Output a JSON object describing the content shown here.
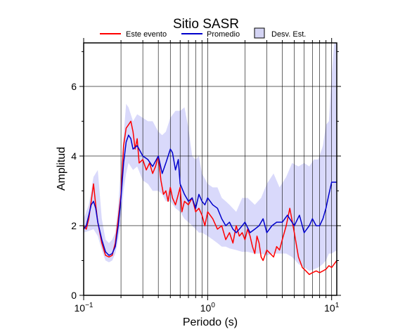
{
  "chart_data": {
    "type": "line",
    "title": "Sitio SASR",
    "xlabel": "Periodo (s)",
    "ylabel": "Amplitud",
    "x_scale": "log",
    "xlim": [
      0.1,
      11
    ],
    "ylim": [
      0,
      7.25
    ],
    "y_ticks": [
      0,
      2,
      4,
      6
    ],
    "x_tick_labels": [
      {
        "base": "10",
        "exp": "−1",
        "value": 0.1
      },
      {
        "base": "10",
        "exp": "0",
        "value": 1
      },
      {
        "base": "10",
        "exp": "1",
        "value": 10
      }
    ],
    "grid": true,
    "legend_placement": "top",
    "legend": {
      "event_label": "Este evento",
      "mean_label": "Promedio",
      "band_label": "Desv. Est."
    },
    "colors": {
      "event": "#ff0000",
      "mean": "#0000cc",
      "band_fill": "#d9d9fb",
      "band_legend_fill": "#d4d4f4"
    },
    "series": [
      {
        "name": "Este evento",
        "color": "#ff0000",
        "x": [
          0.1,
          0.105,
          0.11,
          0.115,
          0.12,
          0.125,
          0.13,
          0.14,
          0.15,
          0.16,
          0.17,
          0.18,
          0.19,
          0.2,
          0.21,
          0.22,
          0.23,
          0.24,
          0.25,
          0.26,
          0.27,
          0.28,
          0.3,
          0.32,
          0.34,
          0.36,
          0.38,
          0.4,
          0.42,
          0.44,
          0.46,
          0.48,
          0.5,
          0.52,
          0.55,
          0.58,
          0.6,
          0.62,
          0.65,
          0.7,
          0.75,
          0.8,
          0.85,
          0.9,
          0.95,
          1.0,
          1.1,
          1.2,
          1.3,
          1.4,
          1.5,
          1.6,
          1.7,
          1.8,
          1.9,
          2.0,
          2.1,
          2.2,
          2.3,
          2.4,
          2.5,
          2.6,
          2.7,
          2.8,
          3.0,
          3.2,
          3.4,
          3.6,
          3.8,
          4.0,
          4.3,
          4.6,
          5.0,
          5.4,
          5.8,
          6.2,
          6.6,
          7.0,
          7.5,
          8.0,
          8.5,
          9.0,
          9.5,
          10.0,
          10.5,
          11.0
        ],
        "y": [
          2.0,
          1.9,
          2.2,
          2.7,
          3.2,
          2.6,
          2.1,
          1.5,
          1.15,
          1.1,
          1.15,
          1.5,
          2.2,
          2.9,
          4.3,
          4.8,
          4.9,
          5.0,
          4.7,
          4.2,
          4.5,
          3.8,
          3.9,
          3.6,
          3.8,
          3.5,
          3.7,
          4.0,
          3.3,
          2.9,
          3.0,
          2.7,
          3.1,
          2.8,
          2.6,
          2.9,
          3.1,
          2.4,
          2.7,
          2.6,
          2.8,
          2.4,
          2.5,
          2.3,
          2.0,
          2.4,
          2.2,
          1.9,
          2.0,
          1.6,
          1.8,
          1.5,
          2.0,
          1.7,
          1.8,
          1.6,
          1.9,
          1.7,
          1.4,
          1.2,
          1.7,
          1.5,
          1.1,
          1.0,
          1.3,
          1.2,
          1.1,
          1.4,
          1.3,
          1.6,
          2.0,
          2.5,
          1.8,
          1.1,
          0.8,
          0.7,
          0.6,
          0.65,
          0.7,
          0.65,
          0.7,
          0.75,
          0.85,
          0.8,
          0.9,
          1.0
        ]
      },
      {
        "name": "Promedio",
        "color": "#0000cc",
        "x": [
          0.1,
          0.105,
          0.11,
          0.115,
          0.12,
          0.125,
          0.13,
          0.14,
          0.15,
          0.16,
          0.17,
          0.18,
          0.19,
          0.2,
          0.21,
          0.22,
          0.23,
          0.24,
          0.25,
          0.27,
          0.3,
          0.33,
          0.36,
          0.4,
          0.43,
          0.46,
          0.5,
          0.52,
          0.55,
          0.58,
          0.6,
          0.65,
          0.7,
          0.75,
          0.8,
          0.85,
          0.9,
          0.95,
          1.0,
          1.1,
          1.2,
          1.3,
          1.4,
          1.5,
          1.6,
          1.7,
          1.8,
          1.9,
          2.0,
          2.2,
          2.4,
          2.6,
          2.8,
          3.0,
          3.3,
          3.6,
          4.0,
          4.4,
          5.0,
          5.5,
          6.0,
          6.6,
          7.0,
          7.5,
          8.0,
          8.5,
          9.0,
          9.5,
          10.0,
          10.5,
          11.0
        ],
        "y": [
          1.9,
          2.0,
          2.3,
          2.6,
          2.7,
          2.5,
          2.1,
          1.6,
          1.25,
          1.15,
          1.2,
          1.4,
          2.0,
          2.8,
          3.8,
          4.4,
          4.6,
          4.5,
          4.2,
          4.3,
          4.0,
          3.9,
          3.7,
          4.0,
          3.5,
          3.8,
          4.2,
          4.1,
          3.6,
          3.9,
          3.2,
          2.9,
          2.7,
          2.8,
          2.5,
          2.9,
          2.7,
          2.6,
          2.8,
          2.6,
          2.5,
          2.2,
          2.0,
          2.1,
          1.9,
          1.8,
          1.9,
          2.0,
          2.1,
          1.8,
          1.9,
          2.0,
          2.2,
          1.8,
          2.0,
          2.1,
          2.1,
          2.3,
          2.0,
          2.3,
          1.8,
          2.0,
          2.2,
          2.0,
          2.0,
          2.2,
          2.5,
          2.9,
          3.25,
          3.25,
          3.25
        ]
      }
    ],
    "band": {
      "name": "Desv. Est.",
      "x": [
        0.1,
        0.11,
        0.12,
        0.13,
        0.14,
        0.15,
        0.16,
        0.17,
        0.18,
        0.19,
        0.2,
        0.21,
        0.22,
        0.23,
        0.25,
        0.27,
        0.3,
        0.33,
        0.36,
        0.4,
        0.43,
        0.46,
        0.5,
        0.55,
        0.6,
        0.65,
        0.7,
        0.75,
        0.8,
        0.85,
        0.9,
        1.0,
        1.1,
        1.2,
        1.3,
        1.4,
        1.5,
        1.7,
        1.9,
        2.1,
        2.4,
        2.7,
        3.0,
        3.4,
        3.8,
        4.3,
        4.8,
        5.4,
        6.0,
        6.6,
        7.2,
        7.8,
        8.5,
        9.0,
        9.5,
        10.0,
        10.5,
        11.0
      ],
      "upper": [
        2.2,
        2.6,
        3.4,
        3.6,
        2.2,
        1.6,
        1.5,
        1.6,
        1.8,
        2.6,
        3.7,
        4.6,
        5.5,
        5.4,
        5.0,
        5.2,
        5.1,
        5.0,
        5.0,
        4.7,
        4.6,
        4.7,
        5.1,
        5.3,
        5.3,
        5.4,
        4.8,
        4.0,
        3.9,
        4.0,
        3.5,
        3.2,
        3.1,
        3.1,
        2.8,
        2.7,
        2.6,
        2.4,
        2.8,
        2.8,
        2.6,
        2.8,
        3.2,
        3.5,
        3.1,
        3.4,
        3.8,
        3.7,
        3.8,
        3.7,
        3.9,
        3.9,
        4.3,
        4.9,
        5.0,
        6.3,
        7.25,
        7.25
      ],
      "lower": [
        1.8,
        1.85,
        1.9,
        1.7,
        1.3,
        1.0,
        0.95,
        1.0,
        1.2,
        1.6,
        2.1,
        3.0,
        3.5,
        3.8,
        3.6,
        3.7,
        3.3,
        3.2,
        3.0,
        3.0,
        2.9,
        2.7,
        2.7,
        2.5,
        2.4,
        2.2,
        2.1,
        2.0,
        1.9,
        1.8,
        1.8,
        1.7,
        1.6,
        1.5,
        1.4,
        1.4,
        1.35,
        1.3,
        1.25,
        1.25,
        1.2,
        1.2,
        1.15,
        1.2,
        1.2,
        1.2,
        1.1,
        0.9,
        0.8,
        0.7,
        0.75,
        0.8,
        0.9,
        1.0,
        1.2,
        1.2,
        1.25,
        1.3
      ]
    }
  }
}
